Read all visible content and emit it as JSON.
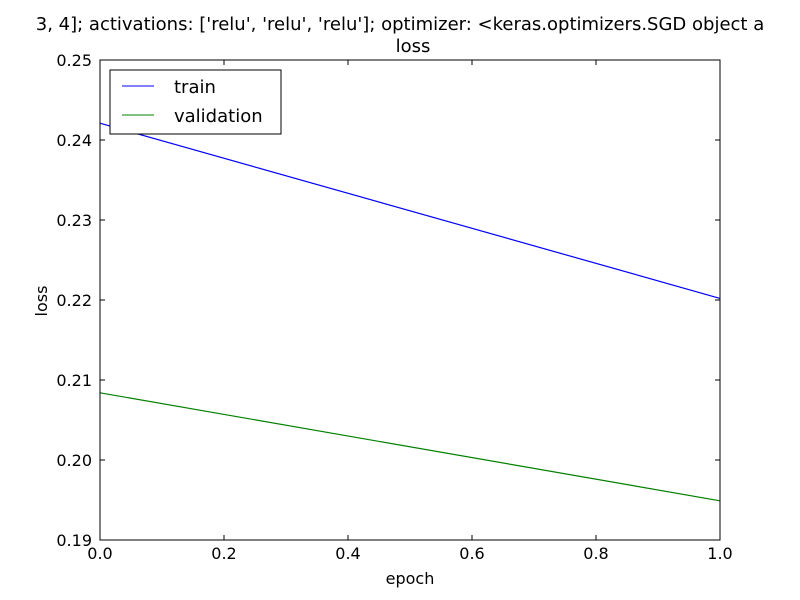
{
  "chart_data": {
    "type": "line",
    "title": "3, 4]; activations: ['relu', 'relu', 'relu']; optimizer: <keras.optimizers.SGD object a",
    "subtitle": "loss",
    "xlabel": "epoch",
    "ylabel": "loss",
    "xlim": [
      0.0,
      1.0
    ],
    "ylim": [
      0.19,
      0.25
    ],
    "x_ticks": [
      "0.0",
      "0.2",
      "0.4",
      "0.6",
      "0.8",
      "1.0"
    ],
    "y_ticks": [
      "0.19",
      "0.20",
      "0.21",
      "0.22",
      "0.23",
      "0.24",
      "0.25"
    ],
    "grid": false,
    "legend_position": "upper-left",
    "x": [
      0,
      1
    ],
    "series": [
      {
        "name": "train",
        "color": "#0000ff",
        "values": [
          0.2421,
          0.2202
        ]
      },
      {
        "name": "validation",
        "color": "#008000",
        "values": [
          0.2084,
          0.1949
        ]
      }
    ]
  }
}
